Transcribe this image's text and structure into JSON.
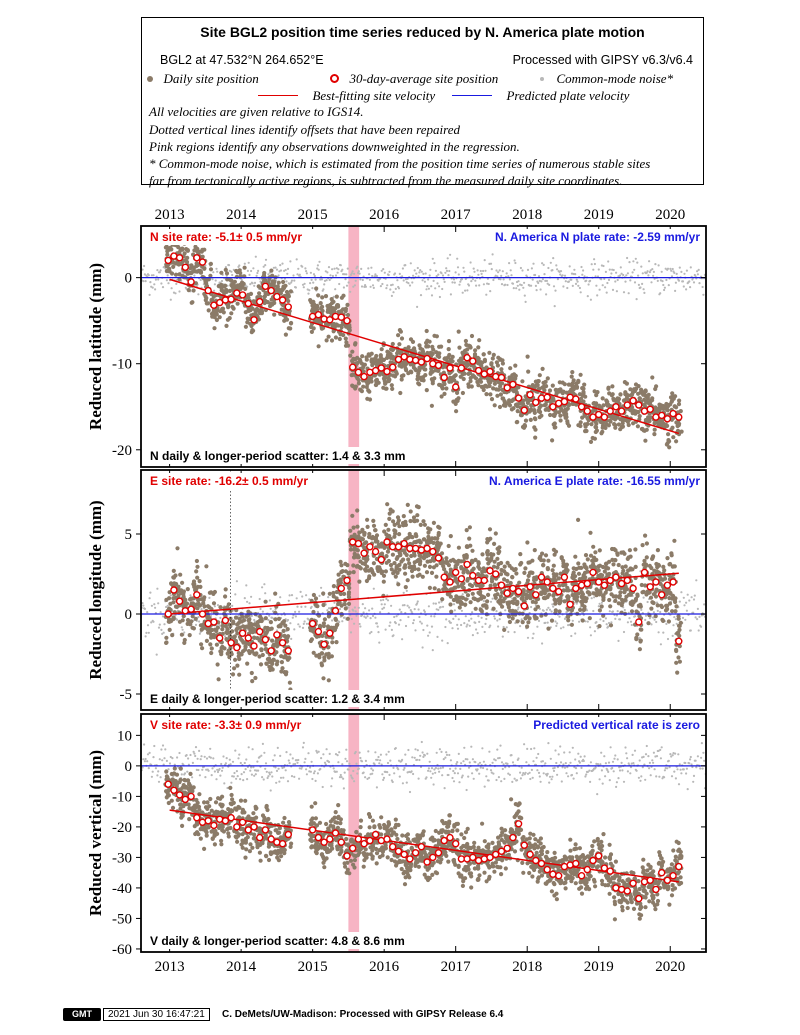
{
  "header": {
    "title": "Site BGL2 position time series reduced by N. America plate motion",
    "site_info": "BGL2 at 47.532°N 264.652°E",
    "processing": "Processed with GIPSY v6.3/v6.4",
    "legend_daily": "Daily site position",
    "legend_avg": "30-day-average site position",
    "legend_cmn": "Common-mode noise*",
    "legend_best_fit": "Best-fitting site velocity",
    "legend_plate": "Predicted plate velocity",
    "note1": "All velocities are given relative to IGS14.",
    "note2": "Dotted vertical lines identify offsets that have been repaired",
    "note3": "Pink regions identify any observations downweighted in the regression.",
    "note4": "* Common-mode noise, which is estimated from the position time series of numerous stable sites",
    "note5": "far from tectonically active regions, is subtracted from the measured daily site coordinates."
  },
  "footer": {
    "logo": "GMT",
    "timestamp": "2021 Jun 30 16:47:21",
    "credit": "C. DeMets/UW-Madison: Processed with GIPSY Release 6.4"
  },
  "colors": {
    "daily": "#8b7b68",
    "cmn": "#b8b8b8",
    "fit": "#e00000",
    "plate": "#1a1ae0",
    "pink": "#f7b4c4"
  },
  "chart_data": [
    {
      "type": "scatter",
      "name": "north",
      "ylabel": "Reduced latitude (mm)",
      "xlim": [
        2012.6,
        2020.5
      ],
      "ylim": [
        -22,
        6
      ],
      "yticks": [
        0,
        -10,
        -20
      ],
      "x_ticks": [
        "2013",
        "2014",
        "2015",
        "2016",
        "2017",
        "2018",
        "2019",
        "2020"
      ],
      "site_rate_label": "N site rate:  -5.1± 0.5 mm/yr",
      "plate_rate_label": "N. America N plate rate: -2.59 mm/yr",
      "scatter_label": "N daily & longer-period scatter:   1.4 &   3.3 mm",
      "downweighted": [
        2015.5,
        2015.65
      ],
      "offsets": [],
      "fit_line": {
        "x": [
          2013.0,
          2020.12
        ],
        "y": [
          -0.2,
          -18.1
        ]
      },
      "plate_line": 0,
      "averages": {
        "x": [
          2012.98,
          2013.06,
          2013.14,
          2013.22,
          2013.3,
          2013.38,
          2013.46,
          2013.54,
          2013.62,
          2013.7,
          2013.78,
          2013.86,
          2013.94,
          2014.02,
          2014.1,
          2014.18,
          2014.26,
          2014.34,
          2014.42,
          2014.5,
          2014.58,
          2014.66,
          2015.0,
          2015.08,
          2015.16,
          2015.24,
          2015.32,
          2015.4,
          2015.48,
          2015.56,
          2015.64,
          2015.72,
          2015.8,
          2015.88,
          2015.96,
          2016.04,
          2016.12,
          2016.2,
          2016.28,
          2016.36,
          2016.44,
          2016.52,
          2016.6,
          2016.68,
          2016.76,
          2016.84,
          2016.92,
          2017.0,
          2017.08,
          2017.16,
          2017.24,
          2017.32,
          2017.4,
          2017.48,
          2017.56,
          2017.64,
          2017.72,
          2017.8,
          2017.88,
          2017.96,
          2018.04,
          2018.12,
          2018.2,
          2018.28,
          2018.36,
          2018.44,
          2018.52,
          2018.6,
          2018.68,
          2018.76,
          2018.84,
          2018.92,
          2019.0,
          2019.08,
          2019.16,
          2019.24,
          2019.32,
          2019.4,
          2019.48,
          2019.56,
          2019.64,
          2019.72,
          2019.8,
          2019.88,
          2019.96,
          2020.04,
          2020.12
        ],
        "y": [
          2.0,
          2.5,
          2.3,
          1.2,
          -0.5,
          2.3,
          1.8,
          -1.5,
          -3.2,
          -2.9,
          -2.6,
          -2.5,
          -1.8,
          -2.0,
          -3.0,
          -4.9,
          -2.8,
          -1.0,
          -1.5,
          -2.2,
          -2.6,
          -3.4,
          -4.5,
          -4.3,
          -4.8,
          -4.9,
          -4.5,
          -4.6,
          -5.0,
          -10.4,
          -11.0,
          -11.5,
          -11.0,
          -10.8,
          -10.5,
          -10.9,
          -10.4,
          -9.5,
          -9.2,
          -9.5,
          -9.6,
          -9.8,
          -9.4,
          -10.0,
          -10.2,
          -11.6,
          -10.5,
          -12.7,
          -10.5,
          -9.3,
          -9.7,
          -10.8,
          -11.2,
          -10.9,
          -11.5,
          -11.6,
          -12.8,
          -12.4,
          -14.0,
          -15.4,
          -13.6,
          -14.5,
          -14.0,
          -13.9,
          -15.0,
          -14.6,
          -14.4,
          -13.9,
          -14.1,
          -15.0,
          -15.5,
          -16.2,
          -15.9,
          -16.2,
          -15.5,
          -15.0,
          -15.5,
          -14.8,
          -14.3,
          -14.8,
          -15.5,
          -15.3,
          -16.2,
          -16.0,
          -16.4,
          -15.8,
          -16.2
        ]
      }
    },
    {
      "type": "scatter",
      "name": "east",
      "ylabel": "Reduced longitude (mm)",
      "xlim": [
        2012.6,
        2020.5
      ],
      "ylim": [
        -6,
        9
      ],
      "yticks": [
        5,
        0,
        -5
      ],
      "site_rate_label": "E site rate: -16.2± 0.5 mm/yr",
      "plate_rate_label": "N. America E plate rate: -16.55 mm/yr",
      "scatter_label": "E daily & longer-period scatter:   1.2 &   3.4 mm",
      "downweighted": [
        2015.5,
        2015.65
      ],
      "offsets": [
        2013.85
      ],
      "fit_line": {
        "x": [
          2013.0,
          2020.12
        ],
        "y": [
          0.0,
          2.55
        ]
      },
      "plate_line": 0,
      "averages": {
        "x": [
          2012.98,
          2013.06,
          2013.14,
          2013.22,
          2013.3,
          2013.38,
          2013.46,
          2013.54,
          2013.62,
          2013.7,
          2013.78,
          2013.86,
          2013.94,
          2014.02,
          2014.1,
          2014.18,
          2014.26,
          2014.34,
          2014.42,
          2014.5,
          2014.58,
          2014.66,
          2015.0,
          2015.08,
          2015.16,
          2015.24,
          2015.32,
          2015.4,
          2015.48,
          2015.56,
          2015.64,
          2015.72,
          2015.8,
          2015.88,
          2015.96,
          2016.04,
          2016.12,
          2016.2,
          2016.28,
          2016.36,
          2016.44,
          2016.52,
          2016.6,
          2016.68,
          2016.76,
          2016.84,
          2016.92,
          2017.0,
          2017.08,
          2017.16,
          2017.24,
          2017.32,
          2017.4,
          2017.48,
          2017.56,
          2017.64,
          2017.72,
          2017.8,
          2017.88,
          2017.96,
          2018.04,
          2018.12,
          2018.2,
          2018.28,
          2018.36,
          2018.44,
          2018.52,
          2018.6,
          2018.68,
          2018.76,
          2018.84,
          2018.92,
          2019.0,
          2019.08,
          2019.16,
          2019.24,
          2019.32,
          2019.4,
          2019.48,
          2019.56,
          2019.64,
          2019.72,
          2019.8,
          2019.88,
          2019.96,
          2020.04,
          2020.12
        ],
        "y": [
          0.0,
          1.5,
          0.8,
          0.2,
          0.3,
          1.2,
          0.0,
          -0.6,
          -0.5,
          -1.5,
          -0.4,
          -1.8,
          -2.1,
          -1.2,
          -1.5,
          -2.0,
          -1.1,
          -1.6,
          -2.3,
          -1.3,
          -1.8,
          -2.3,
          -0.6,
          -1.1,
          -1.9,
          -1.2,
          0.2,
          1.6,
          2.1,
          4.5,
          4.4,
          3.8,
          4.2,
          3.9,
          3.4,
          4.5,
          4.2,
          4.2,
          4.4,
          4.1,
          4.1,
          4.0,
          4.1,
          3.9,
          3.5,
          2.3,
          2.0,
          2.6,
          2.2,
          3.1,
          2.4,
          2.1,
          2.1,
          2.7,
          2.5,
          1.8,
          1.3,
          1.6,
          1.4,
          0.5,
          1.7,
          1.2,
          2.3,
          2.0,
          1.6,
          1.4,
          2.3,
          0.6,
          1.6,
          1.8,
          1.9,
          2.6,
          2.0,
          1.8,
          2.1,
          2.3,
          1.9,
          2.1,
          1.6,
          -0.5,
          2.6,
          1.7,
          2.0,
          1.2,
          1.8,
          2.0,
          -1.7
        ]
      }
    },
    {
      "type": "scatter",
      "name": "vertical",
      "ylabel": "Reduced vertical (mm)",
      "xlim": [
        2012.6,
        2020.5
      ],
      "ylim": [
        -61,
        17
      ],
      "yticks": [
        10,
        0,
        -10,
        -20,
        -30,
        -40,
        -50,
        -60
      ],
      "x_ticks": [
        "2013",
        "2014",
        "2015",
        "2016",
        "2017",
        "2018",
        "2019",
        "2020"
      ],
      "site_rate_label": "V site rate:  -3.3± 0.9 mm/yr",
      "plate_rate_label": "Predicted vertical rate is zero",
      "scatter_label": "V daily & longer-period scatter:   4.8 &   8.6 mm",
      "downweighted": [
        2015.5,
        2015.65
      ],
      "offsets": [],
      "fit_line": {
        "x": [
          2013.0,
          2020.12
        ],
        "y": [
          -14.5,
          -38.0
        ]
      },
      "plate_line": 0,
      "averages": {
        "x": [
          2012.98,
          2013.06,
          2013.14,
          2013.22,
          2013.3,
          2013.38,
          2013.46,
          2013.54,
          2013.62,
          2013.7,
          2013.78,
          2013.86,
          2013.94,
          2014.02,
          2014.1,
          2014.18,
          2014.26,
          2014.34,
          2014.42,
          2014.5,
          2014.58,
          2014.66,
          2015.0,
          2015.08,
          2015.16,
          2015.24,
          2015.32,
          2015.4,
          2015.48,
          2015.56,
          2015.64,
          2015.72,
          2015.8,
          2015.88,
          2015.96,
          2016.04,
          2016.12,
          2016.2,
          2016.28,
          2016.36,
          2016.44,
          2016.52,
          2016.6,
          2016.68,
          2016.76,
          2016.84,
          2016.92,
          2017.0,
          2017.08,
          2017.16,
          2017.24,
          2017.32,
          2017.4,
          2017.48,
          2017.56,
          2017.64,
          2017.72,
          2017.8,
          2017.88,
          2017.96,
          2018.04,
          2018.12,
          2018.2,
          2018.28,
          2018.36,
          2018.44,
          2018.52,
          2018.6,
          2018.68,
          2018.76,
          2018.84,
          2018.92,
          2019.0,
          2019.08,
          2019.16,
          2019.24,
          2019.32,
          2019.4,
          2019.48,
          2019.56,
          2019.64,
          2019.72,
          2019.8,
          2019.88,
          2019.96,
          2020.04,
          2020.12
        ],
        "y": [
          -6.0,
          -8.0,
          -9.5,
          -11.0,
          -10.0,
          -17.0,
          -18.5,
          -18.0,
          -19.5,
          -17.5,
          -18.0,
          -17.0,
          -20.0,
          -18.5,
          -21.0,
          -20.0,
          -23.5,
          -21.0,
          -24.0,
          -25.0,
          -25.5,
          -22.5,
          -21.0,
          -23.5,
          -25.0,
          -24.0,
          -22.0,
          -25.0,
          -29.5,
          -27.0,
          -24.0,
          -25.5,
          -24.5,
          -22.5,
          -24.5,
          -24.0,
          -26.5,
          -28.0,
          -29.0,
          -30.5,
          -28.5,
          -26.5,
          -31.5,
          -30.0,
          -28.5,
          -24.5,
          -23.5,
          -25.5,
          -30.5,
          -30.5,
          -30.0,
          -31.0,
          -30.5,
          -30.0,
          -29.0,
          -28.0,
          -27.0,
          -23.5,
          -19.0,
          -26.0,
          -29.0,
          -31.0,
          -32.0,
          -34.0,
          -35.5,
          -36.0,
          -33.0,
          -32.5,
          -32.0,
          -36.0,
          -34.0,
          -31.0,
          -29.5,
          -33.5,
          -34.5,
          -40.0,
          -40.5,
          -41.0,
          -38.5,
          -43.5,
          -38.0,
          -37.5,
          -40.5,
          -35.0,
          -37.5,
          -36.0,
          -33.0
        ]
      }
    }
  ]
}
